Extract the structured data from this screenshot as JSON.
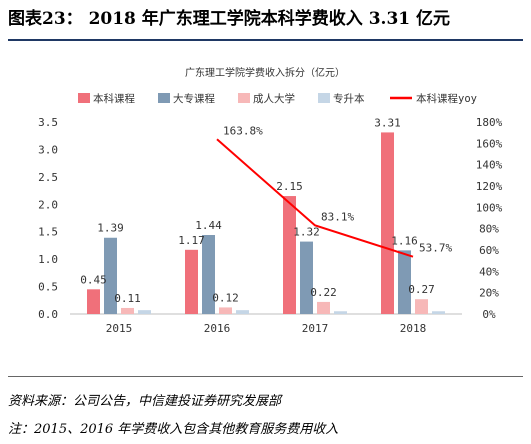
{
  "figure": {
    "title": "图表23：  2018 年广东理工学院本科学费收入 3.31 亿元",
    "source": "资料来源：公司公告，中信建投证券研究发展部",
    "note": "注：2015、2016 年学费收入包含其他教育服务费用收入"
  },
  "chart_data": {
    "type": "bar",
    "title": "广东理工学院学费收入拆分（亿元）",
    "categories": [
      "2015",
      "2016",
      "2017",
      "2018"
    ],
    "series": [
      {
        "name": "本科课程",
        "kind": "bar",
        "axis": "left",
        "color": "#f0707a",
        "values": [
          0.45,
          1.17,
          2.15,
          3.31
        ],
        "labels": [
          "0.45",
          "1.17",
          "2.15",
          "3.31"
        ]
      },
      {
        "name": "大专课程",
        "kind": "bar",
        "axis": "left",
        "color": "#7f9ab4",
        "values": [
          1.39,
          1.44,
          1.32,
          1.16
        ],
        "labels": [
          "1.39",
          "1.44",
          "1.32",
          "1.16"
        ]
      },
      {
        "name": "成人大学",
        "kind": "bar",
        "axis": "left",
        "color": "#f7b8b8",
        "values": [
          0.11,
          0.12,
          0.22,
          0.27
        ],
        "labels": [
          "0.11",
          "0.12",
          "0.22",
          "0.27"
        ]
      },
      {
        "name": "专升本",
        "kind": "bar",
        "axis": "left",
        "color": "#c5d6e6",
        "values": [
          0.07,
          0.07,
          0.05,
          0.05
        ],
        "labels": null
      },
      {
        "name": "本科课程yoy",
        "kind": "line",
        "axis": "right",
        "color": "#ff0000",
        "values": [
          null,
          163.8,
          83.1,
          53.7
        ],
        "labels": [
          null,
          "163.8%",
          "83.1%",
          "53.7%"
        ]
      }
    ],
    "ylim_left": [
      0,
      3.5
    ],
    "yticks_left": [
      "0.0",
      "0.5",
      "1.0",
      "1.5",
      "2.0",
      "2.5",
      "3.0",
      "3.5"
    ],
    "ylim_right": [
      0,
      180
    ],
    "yticks_right": [
      "0%",
      "20%",
      "40%",
      "60%",
      "80%",
      "100%",
      "120%",
      "140%",
      "160%",
      "180%"
    ],
    "legend_position": "top",
    "grid": false
  }
}
